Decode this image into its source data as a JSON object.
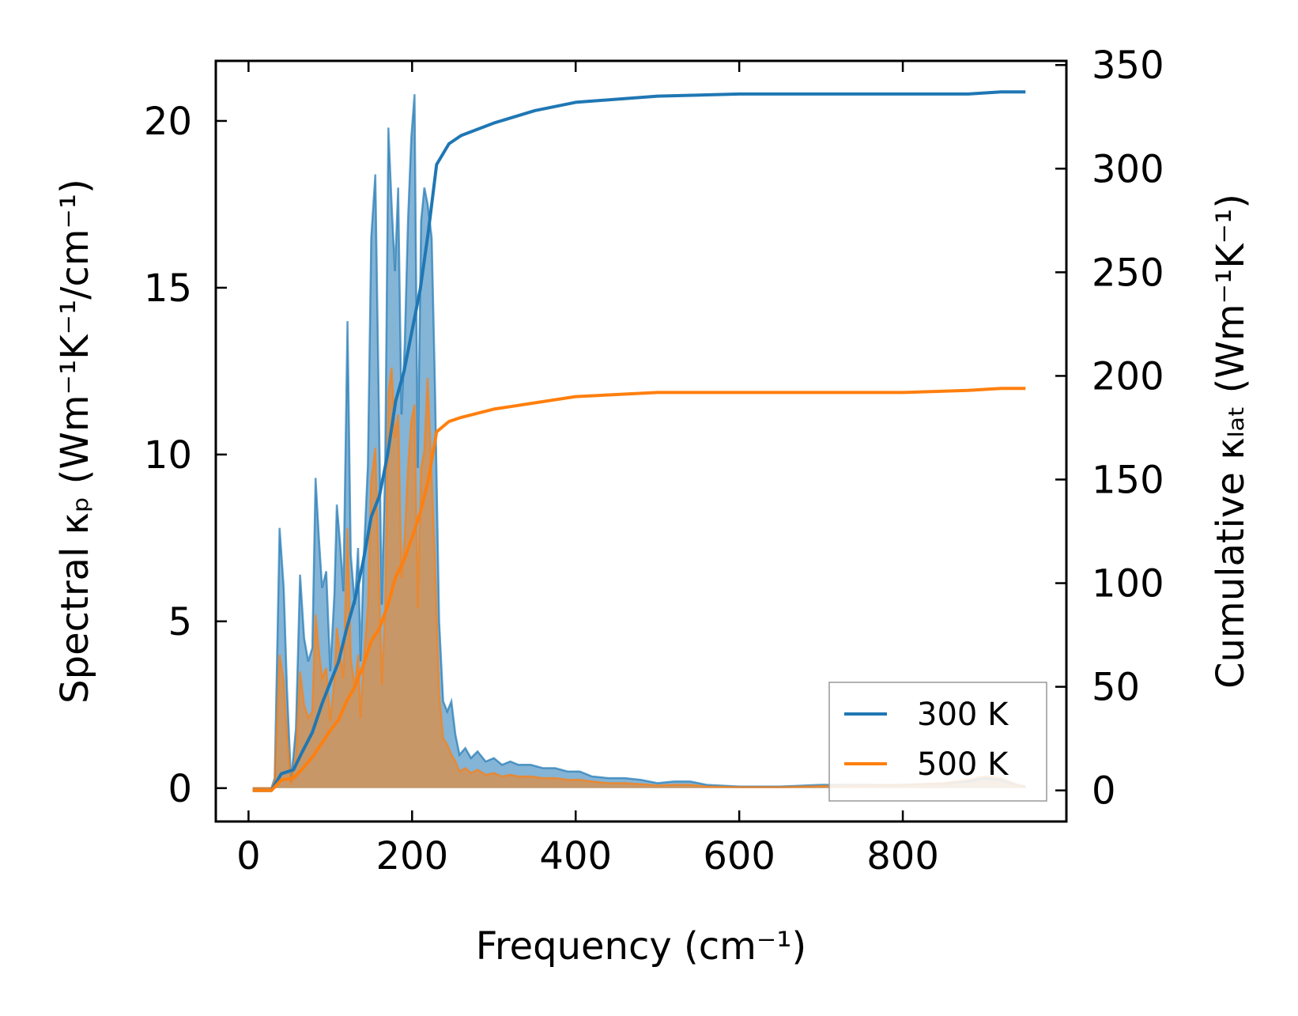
{
  "chart_data": {
    "type": "line",
    "xlabel": "Frequency (cm⁻¹)",
    "ylabel_left": "Spectral κₚ (Wm⁻¹K⁻¹/cm⁻¹)",
    "ylabel_right": "Cumulative κₗₐₜ (Wm⁻¹K⁻¹)",
    "xlim": [
      -40,
      1000
    ],
    "ylim_left": [
      -1,
      21.8
    ],
    "ylim_right": [
      -15,
      352
    ],
    "xticks": [
      0,
      200,
      400,
      600,
      800
    ],
    "yticks_left": [
      0,
      5,
      10,
      15,
      20
    ],
    "yticks_right": [
      0,
      50,
      100,
      150,
      200,
      250,
      300,
      350
    ],
    "legend": {
      "location": "lower-right",
      "entries": [
        "300 K",
        "500 K"
      ]
    },
    "colors": {
      "300 K": "#1f77b4",
      "500 K": "#ff7f0e",
      "frame": "#000000"
    },
    "spectral_series": [
      {
        "name": "300 K",
        "axis": "left",
        "points": [
          [
            5,
            0
          ],
          [
            28,
            0
          ],
          [
            32,
            0.3
          ],
          [
            38,
            7.8
          ],
          [
            43,
            6.0
          ],
          [
            47,
            3.0
          ],
          [
            52,
            0.2
          ],
          [
            58,
            1.8
          ],
          [
            63,
            6.4
          ],
          [
            68,
            4.5
          ],
          [
            73,
            3.8
          ],
          [
            78,
            4.2
          ],
          [
            82,
            9.3
          ],
          [
            86,
            7.5
          ],
          [
            90,
            6.0
          ],
          [
            95,
            6.5
          ],
          [
            100,
            3.5
          ],
          [
            105,
            5.8
          ],
          [
            108,
            8.5
          ],
          [
            112,
            7.3
          ],
          [
            116,
            5.9
          ],
          [
            121,
            14.0
          ],
          [
            125,
            7.0
          ],
          [
            130,
            5.5
          ],
          [
            134,
            7.2
          ],
          [
            137,
            3.8
          ],
          [
            141,
            7.0
          ],
          [
            146,
            9.7
          ],
          [
            150,
            16.5
          ],
          [
            155,
            18.4
          ],
          [
            159,
            12.0
          ],
          [
            163,
            5.5
          ],
          [
            167,
            9.5
          ],
          [
            171,
            19.8
          ],
          [
            175,
            17.5
          ],
          [
            179,
            15.5
          ],
          [
            183,
            18.0
          ],
          [
            187,
            11.2
          ],
          [
            191,
            13.3
          ],
          [
            195,
            17.0
          ],
          [
            199,
            19.5
          ],
          [
            203,
            20.8
          ],
          [
            207,
            9.6
          ],
          [
            211,
            17.0
          ],
          [
            215,
            18.0
          ],
          [
            219,
            17.5
          ],
          [
            224,
            16.5
          ],
          [
            228,
            12.0
          ],
          [
            233,
            5.0
          ],
          [
            238,
            2.6
          ],
          [
            243,
            2.3
          ],
          [
            248,
            2.6
          ],
          [
            253,
            1.6
          ],
          [
            258,
            1.0
          ],
          [
            265,
            1.2
          ],
          [
            272,
            0.9
          ],
          [
            280,
            1.1
          ],
          [
            290,
            0.8
          ],
          [
            300,
            0.9
          ],
          [
            310,
            0.7
          ],
          [
            320,
            0.8
          ],
          [
            330,
            0.7
          ],
          [
            345,
            0.7
          ],
          [
            360,
            0.6
          ],
          [
            375,
            0.6
          ],
          [
            390,
            0.5
          ],
          [
            405,
            0.5
          ],
          [
            420,
            0.35
          ],
          [
            440,
            0.3
          ],
          [
            460,
            0.3
          ],
          [
            480,
            0.25
          ],
          [
            500,
            0.15
          ],
          [
            520,
            0.2
          ],
          [
            540,
            0.2
          ],
          [
            560,
            0.1
          ],
          [
            600,
            0.05
          ],
          [
            650,
            0.05
          ],
          [
            700,
            0.1
          ],
          [
            750,
            0.1
          ],
          [
            800,
            0.1
          ],
          [
            850,
            0.15
          ],
          [
            880,
            0.2
          ],
          [
            900,
            0.3
          ],
          [
            920,
            0.25
          ],
          [
            940,
            0.1
          ],
          [
            950,
            0.05
          ]
        ]
      },
      {
        "name": "500 K",
        "axis": "left",
        "points": [
          [
            5,
            0
          ],
          [
            28,
            0
          ],
          [
            32,
            0.2
          ],
          [
            38,
            4.0
          ],
          [
            43,
            3.2
          ],
          [
            47,
            1.6
          ],
          [
            52,
            0.1
          ],
          [
            58,
            1.0
          ],
          [
            63,
            3.5
          ],
          [
            68,
            2.5
          ],
          [
            73,
            2.1
          ],
          [
            78,
            2.3
          ],
          [
            82,
            5.2
          ],
          [
            86,
            4.1
          ],
          [
            90,
            3.3
          ],
          [
            95,
            3.6
          ],
          [
            100,
            2.0
          ],
          [
            105,
            3.2
          ],
          [
            108,
            4.8
          ],
          [
            112,
            4.0
          ],
          [
            116,
            3.3
          ],
          [
            121,
            7.8
          ],
          [
            125,
            3.9
          ],
          [
            130,
            3.0
          ],
          [
            134,
            4.0
          ],
          [
            137,
            2.1
          ],
          [
            141,
            3.9
          ],
          [
            146,
            5.4
          ],
          [
            150,
            9.2
          ],
          [
            155,
            10.2
          ],
          [
            159,
            6.7
          ],
          [
            163,
            3.1
          ],
          [
            167,
            5.3
          ],
          [
            171,
            11.8
          ],
          [
            175,
            12.6
          ],
          [
            179,
            10.5
          ],
          [
            183,
            11.2
          ],
          [
            187,
            6.3
          ],
          [
            191,
            7.5
          ],
          [
            195,
            9.6
          ],
          [
            199,
            11.0
          ],
          [
            203,
            11.5
          ],
          [
            207,
            5.4
          ],
          [
            211,
            9.6
          ],
          [
            215,
            10.1
          ],
          [
            219,
            12.3
          ],
          [
            224,
            9.3
          ],
          [
            228,
            6.7
          ],
          [
            233,
            2.8
          ],
          [
            238,
            1.5
          ],
          [
            243,
            1.3
          ],
          [
            248,
            1.0
          ],
          [
            253,
            0.8
          ],
          [
            258,
            0.5
          ],
          [
            265,
            0.6
          ],
          [
            272,
            0.45
          ],
          [
            280,
            0.55
          ],
          [
            290,
            0.4
          ],
          [
            300,
            0.45
          ],
          [
            310,
            0.35
          ],
          [
            320,
            0.4
          ],
          [
            330,
            0.35
          ],
          [
            345,
            0.35
          ],
          [
            360,
            0.3
          ],
          [
            375,
            0.3
          ],
          [
            390,
            0.25
          ],
          [
            405,
            0.25
          ],
          [
            420,
            0.2
          ],
          [
            440,
            0.15
          ],
          [
            460,
            0.15
          ],
          [
            480,
            0.12
          ],
          [
            500,
            0.08
          ],
          [
            520,
            0.1
          ],
          [
            540,
            0.1
          ],
          [
            560,
            0.05
          ],
          [
            600,
            0.03
          ],
          [
            650,
            0.03
          ],
          [
            700,
            0.06
          ],
          [
            750,
            0.08
          ],
          [
            800,
            0.1
          ],
          [
            850,
            0.15
          ],
          [
            880,
            0.25
          ],
          [
            900,
            0.35
          ],
          [
            920,
            0.3
          ],
          [
            940,
            0.1
          ],
          [
            950,
            0.05
          ]
        ]
      }
    ],
    "cumulative_series": [
      {
        "name": "300 K",
        "axis": "right",
        "points": [
          [
            5,
            0
          ],
          [
            28,
            0
          ],
          [
            40,
            8
          ],
          [
            55,
            10
          ],
          [
            65,
            18
          ],
          [
            78,
            28
          ],
          [
            90,
            42
          ],
          [
            100,
            52
          ],
          [
            110,
            62
          ],
          [
            120,
            78
          ],
          [
            130,
            92
          ],
          [
            140,
            110
          ],
          [
            150,
            132
          ],
          [
            160,
            142
          ],
          [
            170,
            162
          ],
          [
            180,
            188
          ],
          [
            190,
            202
          ],
          [
            200,
            222
          ],
          [
            210,
            242
          ],
          [
            220,
            270
          ],
          [
            230,
            302
          ],
          [
            245,
            312
          ],
          [
            260,
            316
          ],
          [
            300,
            322
          ],
          [
            350,
            328
          ],
          [
            400,
            332
          ],
          [
            500,
            335
          ],
          [
            600,
            336
          ],
          [
            700,
            336
          ],
          [
            800,
            336
          ],
          [
            880,
            336
          ],
          [
            920,
            337
          ],
          [
            950,
            337
          ]
        ]
      },
      {
        "name": "500 K",
        "axis": "right",
        "points": [
          [
            5,
            0
          ],
          [
            28,
            0
          ],
          [
            40,
            5
          ],
          [
            55,
            6
          ],
          [
            65,
            10
          ],
          [
            78,
            16
          ],
          [
            90,
            23
          ],
          [
            100,
            29
          ],
          [
            110,
            34
          ],
          [
            120,
            43
          ],
          [
            130,
            50
          ],
          [
            140,
            60
          ],
          [
            150,
            72
          ],
          [
            160,
            78
          ],
          [
            170,
            89
          ],
          [
            180,
            103
          ],
          [
            190,
            111
          ],
          [
            200,
            122
          ],
          [
            210,
            134
          ],
          [
            220,
            150
          ],
          [
            230,
            173
          ],
          [
            245,
            178
          ],
          [
            260,
            180
          ],
          [
            300,
            184
          ],
          [
            350,
            187
          ],
          [
            400,
            190
          ],
          [
            500,
            192
          ],
          [
            600,
            192
          ],
          [
            700,
            192
          ],
          [
            800,
            192
          ],
          [
            880,
            193
          ],
          [
            920,
            194
          ],
          [
            950,
            194
          ]
        ]
      }
    ]
  }
}
